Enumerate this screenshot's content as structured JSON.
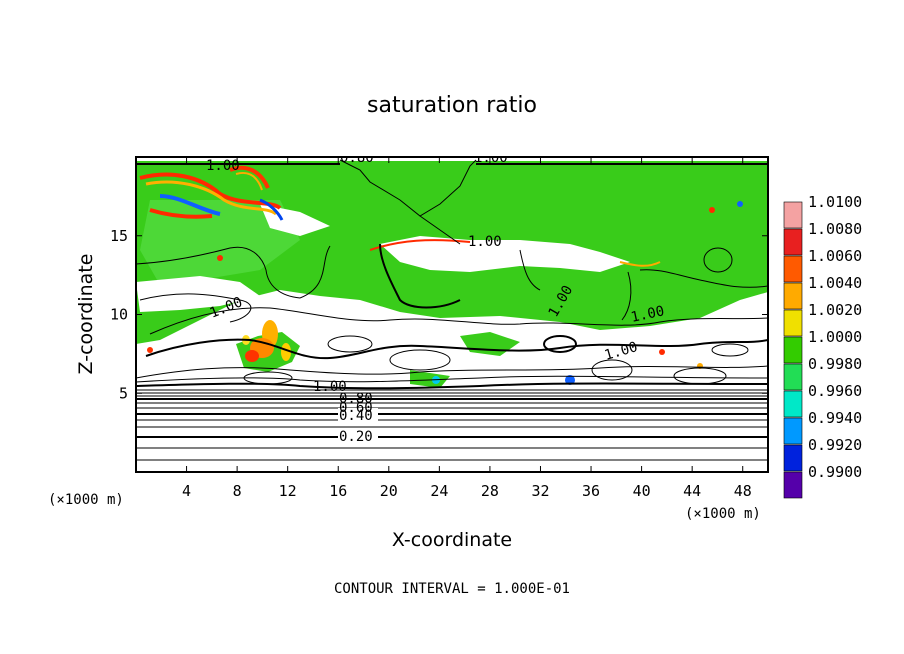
{
  "chart_data": {
    "type": "heatmap",
    "title": "saturation ratio",
    "xlabel": "X-coordinate",
    "ylabel": "Z-coordinate",
    "x_unit": "(×1000 m)",
    "y_unit": "(×1000 m)",
    "xlim": [
      0,
      50
    ],
    "ylim": [
      0,
      20
    ],
    "x_ticks": [
      4,
      8,
      12,
      16,
      20,
      24,
      28,
      32,
      36,
      40,
      44,
      48
    ],
    "y_ticks": [
      5,
      10,
      15
    ],
    "contour_interval_text": "CONTOUR INTERVAL = 1.000E-01",
    "colorbar": {
      "levels": [
        "1.0100",
        "1.0080",
        "1.0060",
        "1.0040",
        "1.0020",
        "1.0000",
        "0.9980",
        "0.9960",
        "0.9940",
        "0.9920",
        "0.9900"
      ],
      "colors": [
        "#f4a2a2",
        "#e82020",
        "#ff5a00",
        "#ffaa00",
        "#f0e000",
        "#33cc00",
        "#22dd55",
        "#00e8c8",
        "#0099ff",
        "#0022dd",
        "#5500aa"
      ]
    },
    "contour_labels": [
      {
        "text": "0.20",
        "x": 17.5,
        "z": 2.3
      },
      {
        "text": "0.40",
        "x": 17.5,
        "z": 3.6
      },
      {
        "text": "0.60",
        "x": 17.5,
        "z": 4.2
      },
      {
        "text": "0.80",
        "x": 17.5,
        "z": 4.8
      },
      {
        "text": "1.00",
        "x": 15.0,
        "z": 5.5
      },
      {
        "text": "1.00",
        "x": 6.5,
        "z": 10.2
      },
      {
        "text": "1.00",
        "x": 27.0,
        "z": 14.7
      },
      {
        "text": "1.00",
        "x": 35.5,
        "z": 10.3
      },
      {
        "text": "1.00",
        "x": 41.0,
        "z": 9.5
      },
      {
        "text": "1.00",
        "x": 38.5,
        "z": 7.5
      },
      {
        "text": "1.00",
        "x": 7.0,
        "z": 19.3
      },
      {
        "text": "0.80",
        "x": 17.5,
        "z": 19.9
      },
      {
        "text": "1.00",
        "x": 28.0,
        "z": 19.9
      }
    ]
  }
}
